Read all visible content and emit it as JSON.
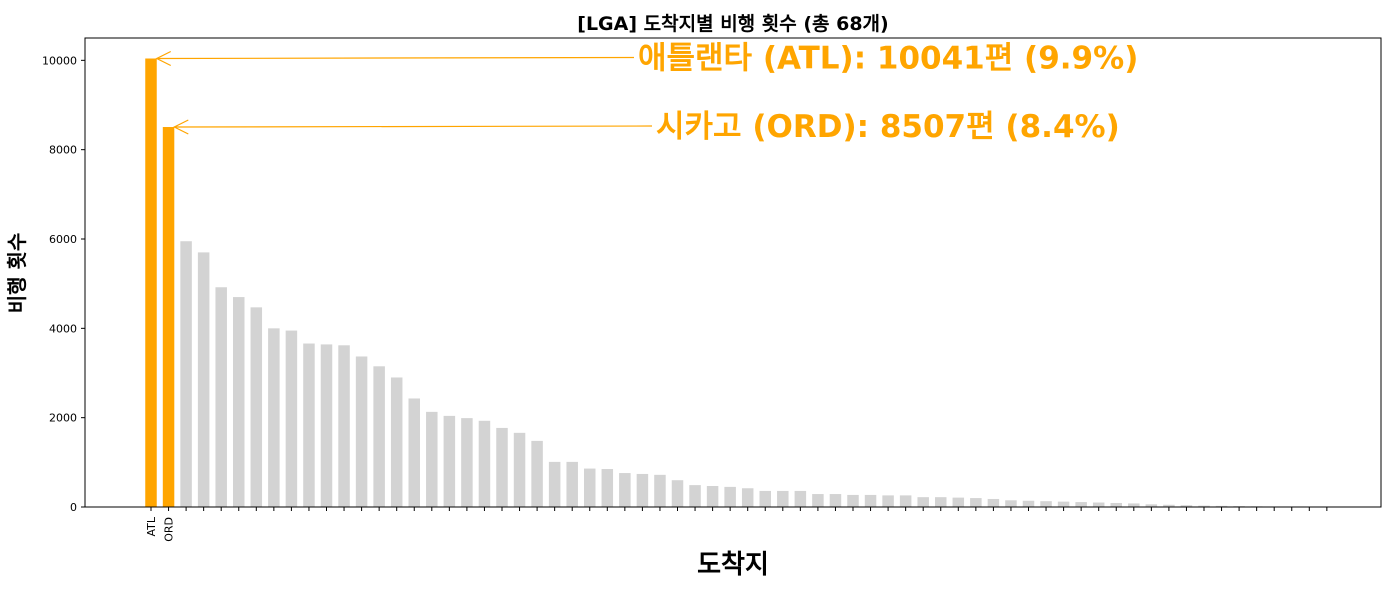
{
  "chart_data": {
    "type": "bar",
    "title": "[LGA] 도착지별 비행 횟수 (총 68개)",
    "xlabel": "도착지",
    "ylabel": "비행 횟수",
    "ylim": [
      0,
      10500
    ],
    "yticks": [
      0,
      2000,
      4000,
      6000,
      8000,
      10000
    ],
    "grid": false,
    "categories": [
      "ATL",
      "ORD",
      "",
      "",
      "",
      "",
      "",
      "",
      "",
      "",
      "",
      "",
      "",
      "",
      "",
      "",
      "",
      "",
      "",
      "",
      "",
      "",
      "",
      "",
      "",
      "",
      "",
      "",
      "",
      "",
      "",
      "",
      "",
      "",
      "",
      "",
      "",
      "",
      "",
      "",
      "",
      "",
      "",
      "",
      "",
      "",
      "",
      "",
      "",
      "",
      "",
      "",
      "",
      "",
      "",
      "",
      "",
      "",
      "",
      "",
      "",
      "",
      "",
      "",
      "",
      "",
      "",
      ""
    ],
    "values": [
      10041,
      8507,
      5950,
      5700,
      4920,
      4700,
      4470,
      4000,
      3950,
      3660,
      3640,
      3620,
      3370,
      3150,
      2900,
      2430,
      2130,
      2040,
      1990,
      1930,
      1770,
      1660,
      1480,
      1010,
      1010,
      860,
      850,
      760,
      740,
      720,
      600,
      490,
      470,
      450,
      420,
      360,
      360,
      360,
      290,
      290,
      270,
      270,
      260,
      260,
      220,
      220,
      210,
      200,
      180,
      150,
      140,
      130,
      120,
      110,
      100,
      90,
      80,
      60,
      50,
      40,
      30,
      25,
      20,
      15,
      10,
      8,
      5,
      3
    ],
    "highlight_indices": [
      0,
      1
    ],
    "colors": {
      "highlight": "#FFA500",
      "default": "#D3D3D3",
      "annotation": "#FFA500"
    },
    "annotations": [
      {
        "index": 0,
        "text": "애틀랜타 (ATL): 10041편 (9.9%)"
      },
      {
        "index": 1,
        "text": "시카고 (ORD): 8507편 (8.4%)"
      }
    ]
  }
}
